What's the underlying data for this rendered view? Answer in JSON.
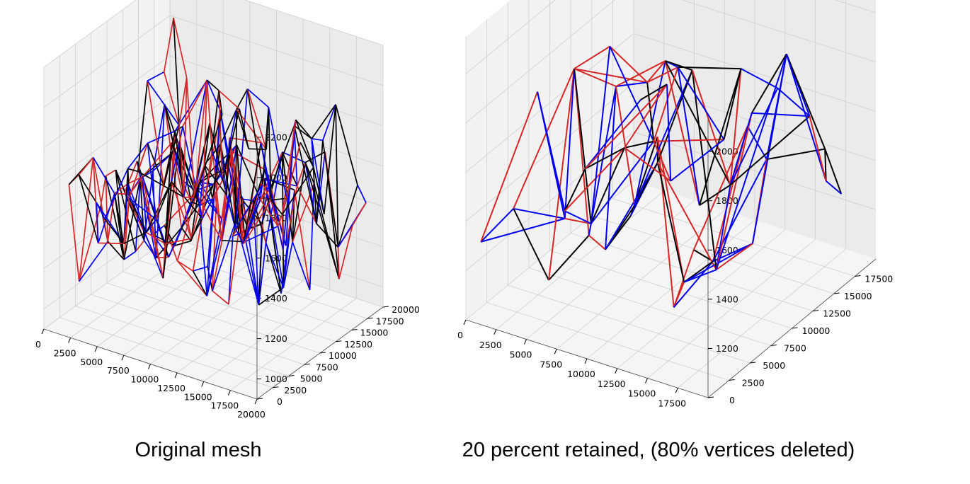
{
  "figure": {
    "left_caption": "Original mesh",
    "right_caption": "20 percent retained, (80% vertices deleted)"
  },
  "chart_data": [
    {
      "type": "3d-wireframe-mesh",
      "caption": "Original mesh",
      "grid": true,
      "series_colors": [
        "#000000",
        "#d62728",
        "#0000ee"
      ],
      "xlim": [
        0,
        20000
      ],
      "ylim": [
        0,
        20000
      ],
      "zlim": [
        900,
        2200
      ],
      "x_ticks": [
        0,
        2500,
        5000,
        7500,
        10000,
        12500,
        15000,
        17500,
        20000
      ],
      "y_ticks": [
        0,
        2500,
        5000,
        7500,
        10000,
        12500,
        15000,
        17500,
        20000
      ],
      "z_ticks": [
        1000,
        1200,
        1400,
        1600,
        1800,
        2000,
        2200
      ],
      "x_tick_labels": [
        "0",
        "2500",
        "5000",
        "7500",
        "10000",
        "12500",
        "15000",
        "17500",
        "20000"
      ],
      "y_tick_labels": [
        "0",
        "2500",
        "5000",
        "7500",
        "10000",
        "12500",
        "15000",
        "17500",
        "20000"
      ],
      "z_tick_labels": [
        "1000",
        "1200",
        "1400",
        "1600",
        "1800",
        "2000",
        "2200"
      ],
      "vertex_count_estimate": 130
    },
    {
      "type": "3d-wireframe-mesh",
      "caption": "20 percent retained, (80% vertices deleted)",
      "grid": true,
      "series_colors": [
        "#000000",
        "#d62728",
        "#0000ee"
      ],
      "xlim": [
        0,
        20000
      ],
      "ylim": [
        0,
        20000
      ],
      "zlim": [
        1000,
        2150
      ],
      "x_ticks": [
        0,
        2500,
        5000,
        7500,
        10000,
        12500,
        15000,
        17500
      ],
      "y_ticks": [
        0,
        2500,
        5000,
        7500,
        10000,
        12500,
        15000,
        17500
      ],
      "z_ticks": [
        1200,
        1400,
        1600,
        1800,
        2000
      ],
      "x_tick_labels": [
        "0",
        "2500",
        "5000",
        "7500",
        "10000",
        "12500",
        "15000",
        "17500"
      ],
      "y_tick_labels": [
        "0",
        "2500",
        "5000",
        "7500",
        "10000",
        "12500",
        "15000",
        "17500"
      ],
      "z_tick_labels": [
        "1200",
        "1400",
        "1600",
        "1800",
        "2000"
      ],
      "vertex_count_estimate": 40
    }
  ]
}
